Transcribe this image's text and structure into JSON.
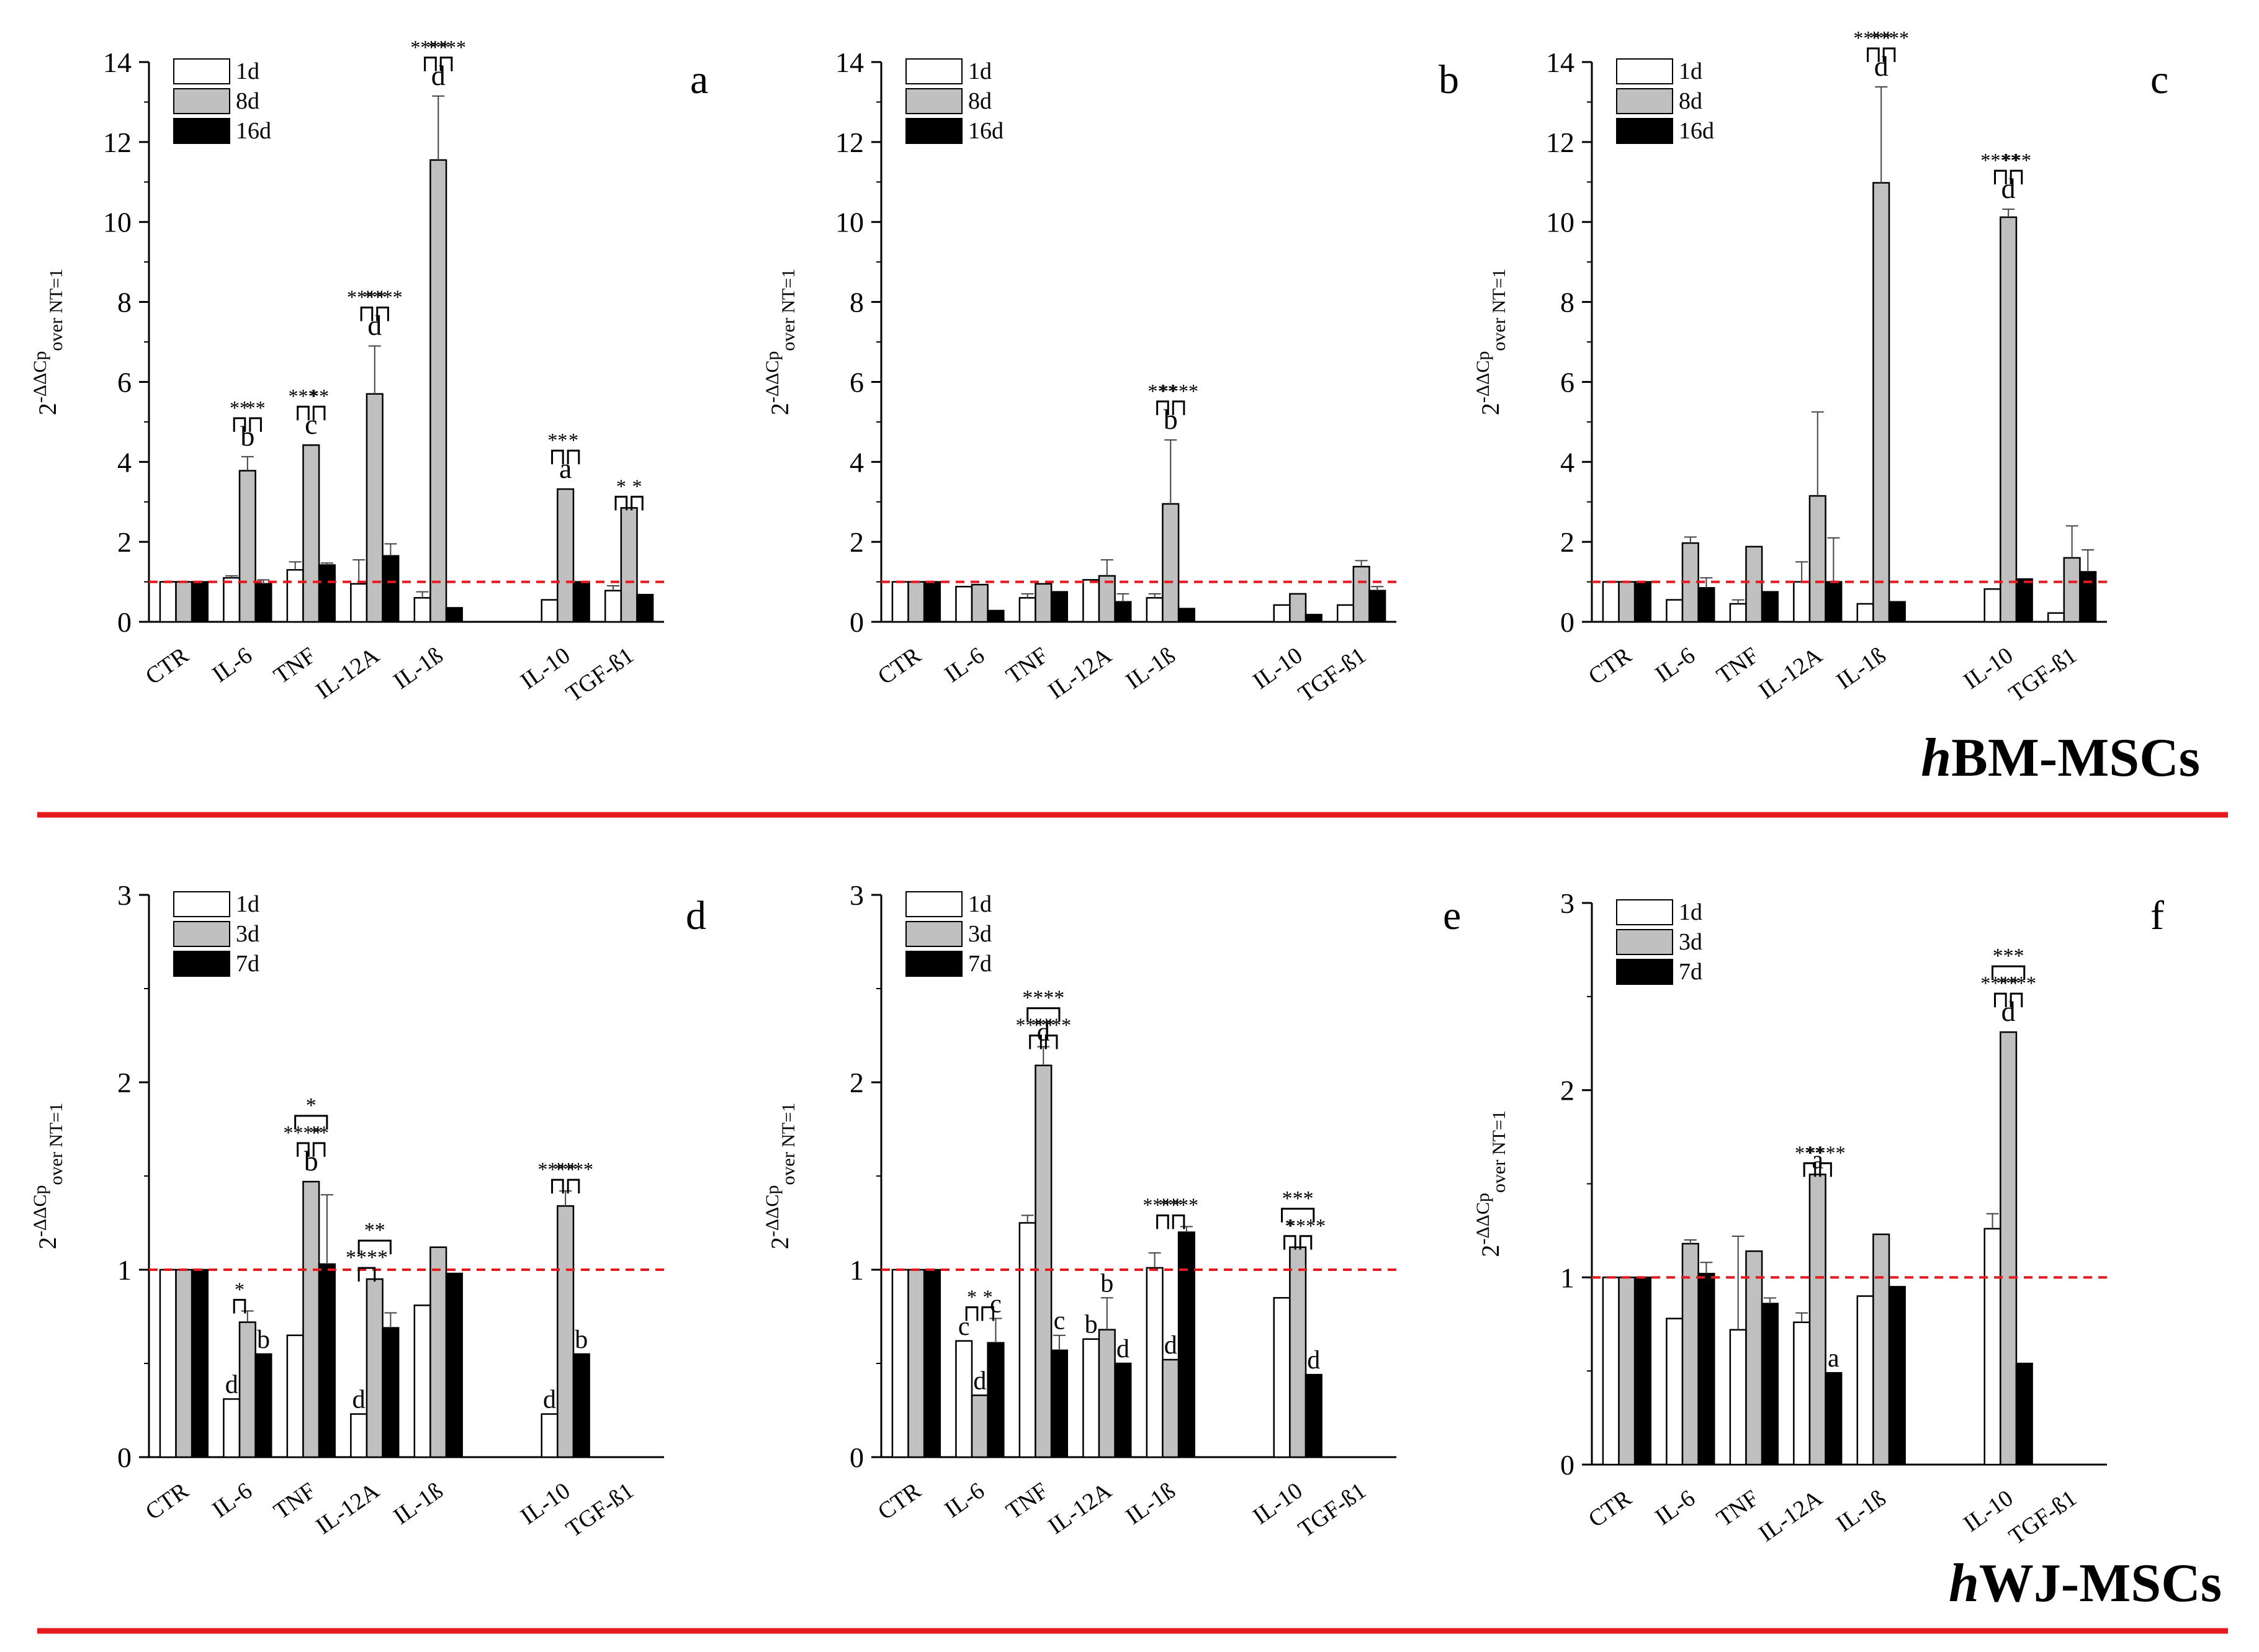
{
  "figure": {
    "red_color": "#e41a1c",
    "rows": [
      {
        "label_prefix": "h",
        "label_rest": "BM-MSCs"
      },
      {
        "label_prefix": "h",
        "label_rest": "WJ-MSCs"
      }
    ]
  },
  "chart_data": [
    {
      "panel": "a",
      "type": "bar",
      "group": "hBM-MSCs",
      "ylabel": {
        "base": "2",
        "sup": "-ΔΔCp",
        "sub": "over NT=1"
      },
      "ylim": [
        0,
        14
      ],
      "yticks": [
        0,
        2,
        4,
        6,
        8,
        10,
        12,
        14
      ],
      "reference_line": 1,
      "categories": [
        "CTR",
        "IL-6",
        "TNF",
        "IL-12A",
        "IL-1ß",
        "",
        "IL-10",
        "TGF-ß1"
      ],
      "series": [
        {
          "name": "1d",
          "color": "#ffffff",
          "values": [
            1,
            1.1,
            1.3,
            0.95,
            0.6,
            null,
            0.55,
            0.78
          ],
          "errors": [
            0,
            0.05,
            0.2,
            0.6,
            0.15,
            null,
            0,
            0.12
          ]
        },
        {
          "name": "8d",
          "color": "#c0c0c0",
          "values": [
            1,
            3.78,
            4.42,
            5.7,
            11.55,
            null,
            3.32,
            2.85
          ],
          "errors": [
            0,
            0.35,
            0,
            1.2,
            1.6,
            null,
            0,
            0
          ]
        },
        {
          "name": "16d",
          "color": "#000000",
          "values": [
            1,
            0.95,
            1.42,
            1.65,
            0.35,
            null,
            1.0,
            0.68
          ],
          "errors": [
            0,
            0.1,
            0.05,
            0.3,
            0,
            null,
            0,
            0
          ]
        }
      ],
      "annotations": [
        {
          "cat": 1,
          "letter": "b",
          "stars": [
            "**",
            "**"
          ]
        },
        {
          "cat": 2,
          "letter": "c",
          "stars": [
            "***",
            "**"
          ]
        },
        {
          "cat": 3,
          "letter": "d",
          "stars": [
            "****",
            "****"
          ]
        },
        {
          "cat": 4,
          "letter": "d",
          "stars": [
            "****",
            "****"
          ]
        },
        {
          "cat": 6,
          "letter": "a",
          "stars": [
            "**",
            "*"
          ]
        },
        {
          "cat": 7,
          "letter": "",
          "stars": [
            "*",
            "*"
          ]
        }
      ]
    },
    {
      "panel": "b",
      "type": "bar",
      "group": "hBM-MSCs",
      "ylabel": {
        "base": "2",
        "sup": "-ΔΔCp",
        "sub": "over NT=1"
      },
      "ylim": [
        0,
        14
      ],
      "yticks": [
        0,
        2,
        4,
        6,
        8,
        10,
        12,
        14
      ],
      "reference_line": 1,
      "categories": [
        "CTR",
        "IL-6",
        "TNF",
        "IL-12A",
        "IL-1ß",
        "",
        "IL-10",
        "TGF-ß1"
      ],
      "series": [
        {
          "name": "1d",
          "color": "#ffffff",
          "values": [
            1,
            0.88,
            0.6,
            1.05,
            0.6,
            null,
            0.42,
            0.42
          ],
          "errors": [
            0,
            0,
            0.1,
            0,
            0.1,
            null,
            0,
            0
          ]
        },
        {
          "name": "8d",
          "color": "#c0c0c0",
          "values": [
            1,
            0.93,
            0.95,
            1.15,
            2.95,
            null,
            0.7,
            1.38
          ],
          "errors": [
            0,
            0,
            0,
            0.4,
            1.6,
            null,
            0,
            0.15
          ]
        },
        {
          "name": "16d",
          "color": "#000000",
          "values": [
            1,
            0.28,
            0.75,
            0.5,
            0.33,
            null,
            0.18,
            0.78
          ],
          "errors": [
            0,
            0,
            0,
            0.2,
            0,
            null,
            0,
            0.1
          ]
        }
      ],
      "annotations": [
        {
          "cat": 4,
          "letter": "b",
          "stars": [
            "***",
            "****"
          ]
        }
      ]
    },
    {
      "panel": "c",
      "type": "bar",
      "group": "hBM-MSCs",
      "ylabel": {
        "base": "2",
        "sup": "-ΔΔCp",
        "sub": "over NT=1"
      },
      "ylim": [
        0,
        14
      ],
      "yticks": [
        0,
        2,
        4,
        6,
        8,
        10,
        12,
        14
      ],
      "reference_line": 1,
      "categories": [
        "CTR",
        "IL-6",
        "TNF",
        "IL-12A",
        "IL-1ß",
        "",
        "IL-10",
        "TGF-ß1"
      ],
      "series": [
        {
          "name": "1d",
          "color": "#ffffff",
          "values": [
            1,
            0.55,
            0.45,
            1.0,
            0.45,
            null,
            0.82,
            0.22
          ],
          "errors": [
            0,
            0,
            0.1,
            0.5,
            0,
            null,
            0,
            0
          ]
        },
        {
          "name": "8d",
          "color": "#c0c0c0",
          "values": [
            1,
            1.97,
            1.88,
            3.15,
            10.98,
            null,
            10.12,
            1.6
          ],
          "errors": [
            0,
            0.15,
            0,
            2.1,
            2.4,
            null,
            0.2,
            0.8
          ]
        },
        {
          "name": "16d",
          "color": "#000000",
          "values": [
            1,
            0.85,
            0.75,
            1.0,
            0.5,
            null,
            1.07,
            1.25
          ],
          "errors": [
            0,
            0.25,
            0,
            1.1,
            0,
            null,
            0,
            0.55
          ]
        }
      ],
      "annotations": [
        {
          "cat": 4,
          "letter": "d",
          "stars": [
            "****",
            "****"
          ]
        },
        {
          "cat": 6,
          "letter": "d",
          "stars": [
            "****",
            "***"
          ]
        }
      ]
    },
    {
      "panel": "d",
      "type": "bar",
      "group": "hWJ-MSCs",
      "ylabel": {
        "base": "2",
        "sup": "-ΔΔCp",
        "sub": "over NT=1"
      },
      "ylim": [
        0,
        3
      ],
      "yticks": [
        0,
        1,
        2,
        3
      ],
      "reference_line": 1,
      "categories": [
        "CTR",
        "IL-6",
        "TNF",
        "IL-12A",
        "IL-1ß",
        "",
        "IL-10",
        "TGF-ß1"
      ],
      "series": [
        {
          "name": "1d",
          "color": "#ffffff",
          "values": [
            1,
            0.31,
            0.65,
            0.23,
            0.81,
            null,
            0.23,
            null
          ],
          "errors": [
            0,
            0,
            0,
            0,
            0,
            null,
            0,
            null
          ]
        },
        {
          "name": "3d",
          "color": "#c0c0c0",
          "values": [
            1,
            0.72,
            1.47,
            0.95,
            1.12,
            null,
            1.34,
            null
          ],
          "errors": [
            0,
            0.06,
            0,
            0,
            0,
            null,
            0.08,
            null
          ]
        },
        {
          "name": "7d",
          "color": "#000000",
          "values": [
            1,
            0.55,
            1.03,
            0.69,
            0.98,
            null,
            0.55,
            null
          ],
          "errors": [
            0,
            0,
            0.37,
            0.08,
            0,
            null,
            0,
            null
          ]
        }
      ],
      "annotations": [
        {
          "cat": 1,
          "letters": [
            "d",
            "",
            "b"
          ],
          "stars": [
            "*",
            ""
          ]
        },
        {
          "cat": 2,
          "letter": "b",
          "stars": [
            "****",
            "**"
          ],
          "span": "*"
        },
        {
          "cat": 3,
          "letters": [
            "d",
            "",
            ""
          ],
          "single": "****",
          "span": "**"
        },
        {
          "cat": 6,
          "letters": [
            "d",
            "",
            "b"
          ],
          "stars": [
            "****",
            "****"
          ]
        }
      ]
    },
    {
      "panel": "e",
      "type": "bar",
      "group": "hWJ-MSCs",
      "ylabel": {
        "base": "2",
        "sup": "-ΔΔCp",
        "sub": "over NT=1"
      },
      "ylim": [
        0,
        3
      ],
      "yticks": [
        0,
        1,
        2,
        3
      ],
      "reference_line": 1,
      "categories": [
        "CTR",
        "IL-6",
        "TNF",
        "IL-12A",
        "IL-1ß",
        "",
        "IL-10",
        "TGF-ß1"
      ],
      "series": [
        {
          "name": "1d",
          "color": "#ffffff",
          "values": [
            1,
            0.62,
            1.25,
            0.63,
            1.01,
            null,
            0.85,
            null
          ],
          "errors": [
            0,
            0,
            0.04,
            0,
            0.08,
            null,
            0,
            null
          ]
        },
        {
          "name": "3d",
          "color": "#c0c0c0",
          "values": [
            1,
            0.33,
            2.09,
            0.68,
            0.52,
            null,
            1.12,
            null
          ],
          "errors": [
            0,
            0,
            0.1,
            0.17,
            0,
            null,
            0,
            null
          ]
        },
        {
          "name": "7d",
          "color": "#000000",
          "values": [
            1,
            0.61,
            0.57,
            0.5,
            1.2,
            null,
            0.44,
            null
          ],
          "errors": [
            0,
            0.13,
            0.08,
            0,
            0.03,
            null,
            0,
            null
          ]
        }
      ],
      "annotations": [
        {
          "cat": 1,
          "letters": [
            "c",
            "d",
            "c"
          ],
          "stars": [
            "*",
            "*"
          ]
        },
        {
          "cat": 2,
          "letters": [
            "",
            "d",
            "c"
          ],
          "stars": [
            "****",
            "****"
          ],
          "span": "****"
        },
        {
          "cat": 3,
          "letters": [
            "b",
            "b",
            "d"
          ]
        },
        {
          "cat": 4,
          "letters": [
            "",
            "d",
            ""
          ],
          "stars": [
            "****",
            "****"
          ]
        },
        {
          "cat": 6,
          "letters": [
            "",
            "",
            "d"
          ],
          "stars": [
            "*",
            "****"
          ],
          "span": "***"
        }
      ]
    },
    {
      "panel": "f",
      "type": "bar",
      "group": "hWJ-MSCs",
      "ylabel": {
        "base": "2",
        "sup": "-ΔΔCp",
        "sub": "over NT=1"
      },
      "ylim": [
        0,
        3
      ],
      "yticks": [
        0,
        1,
        2,
        3
      ],
      "reference_line": 1,
      "categories": [
        "CTR",
        "IL-6",
        "TNF",
        "IL-12A",
        "IL-1ß",
        "",
        "IL-10",
        "TGF-ß1"
      ],
      "series": [
        {
          "name": "1d",
          "color": "#ffffff",
          "values": [
            1,
            0.78,
            0.72,
            0.76,
            0.9,
            null,
            1.26,
            null
          ],
          "errors": [
            0,
            0,
            0.5,
            0.05,
            0,
            null,
            0.08,
            null
          ]
        },
        {
          "name": "3d",
          "color": "#c0c0c0",
          "values": [
            1,
            1.18,
            1.14,
            1.55,
            1.23,
            null,
            2.31,
            null
          ],
          "errors": [
            0,
            0.02,
            0,
            0,
            0,
            null,
            0,
            null
          ]
        },
        {
          "name": "7d",
          "color": "#000000",
          "values": [
            1,
            1.02,
            0.86,
            0.49,
            0.95,
            null,
            0.54,
            null
          ],
          "errors": [
            0,
            0.06,
            0.03,
            0,
            0,
            null,
            0,
            null
          ]
        }
      ],
      "annotations": [
        {
          "cat": 3,
          "letters": [
            "",
            "a",
            "a"
          ],
          "stars": [
            "***",
            "****"
          ]
        },
        {
          "cat": 6,
          "letter": "d",
          "stars": [
            "****",
            "****"
          ],
          "span": "***"
        }
      ]
    }
  ]
}
